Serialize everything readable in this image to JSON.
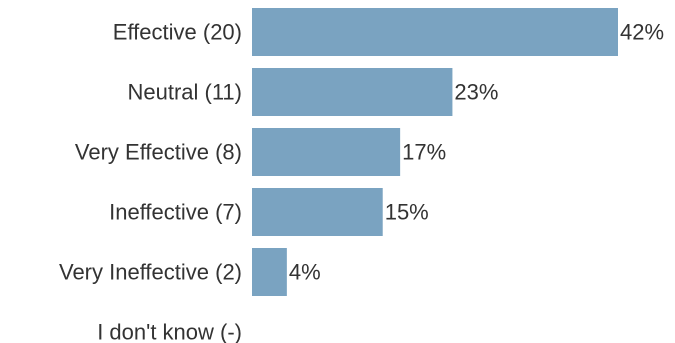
{
  "chart_data": {
    "type": "bar",
    "orientation": "horizontal",
    "categories": [
      "Effective (20)",
      "Neutral (11)",
      "Very Effective (8)",
      "Ineffective (7)",
      "Very Ineffective (2)",
      "I don't know (-)"
    ],
    "values": [
      42,
      23,
      17,
      15,
      4,
      null
    ],
    "value_labels": [
      "42%",
      "23%",
      "17%",
      "15%",
      "4%",
      ""
    ],
    "value_unit": "%",
    "xlim": [
      0,
      42
    ],
    "bar_color": "#7aa3c1",
    "grid": false,
    "legend": "none",
    "title": "",
    "xlabel": "",
    "ylabel": ""
  }
}
